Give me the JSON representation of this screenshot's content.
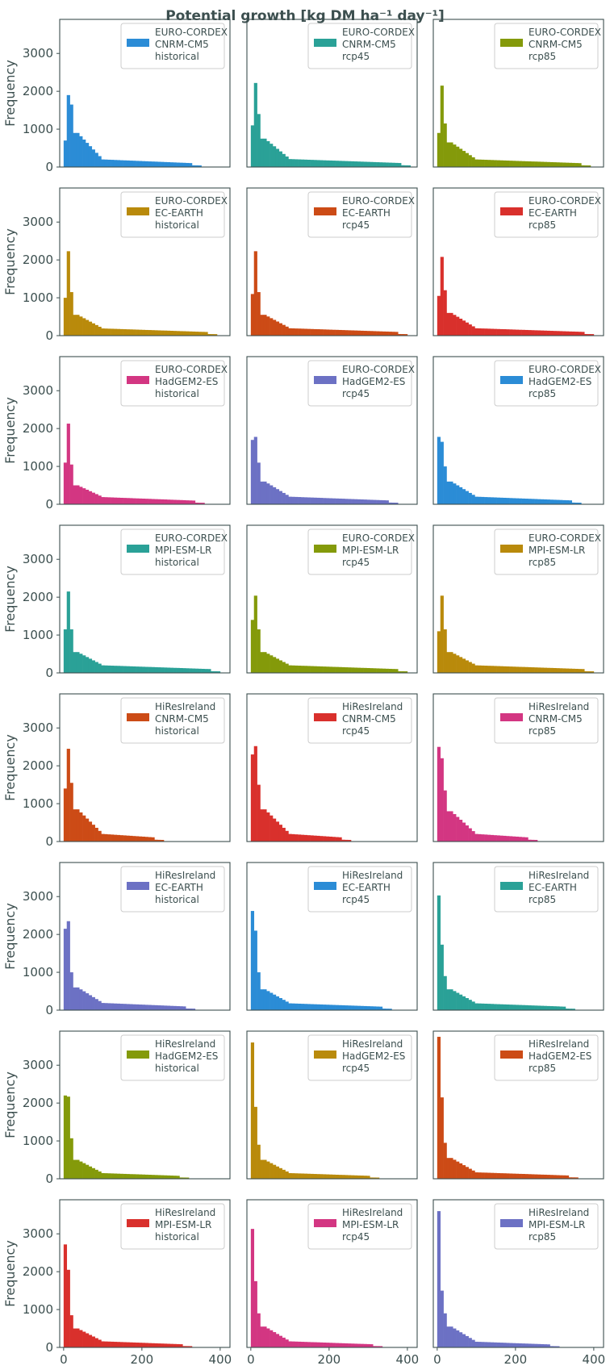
{
  "figure": {
    "title": "Potential growth [kg DM ha⁻¹ day⁻¹]",
    "ylabel": "Frequency",
    "colors": {
      "blue": "#2b8cd6",
      "teal": "#2aa197",
      "olive": "#849a0a",
      "gold": "#b98a0b",
      "orange": "#cc4b16",
      "red": "#d9302c",
      "magenta": "#d33682",
      "violet": "#6c71c4"
    }
  },
  "chart_data": {
    "type": "bar",
    "xlim": [
      -10,
      425
    ],
    "ylim": [
      0,
      3900
    ],
    "xticks": [
      0,
      200,
      400
    ],
    "yticks": [
      0,
      1000,
      2000,
      3000
    ],
    "grid": false,
    "legend_position": "top-right",
    "bin_width": 8,
    "panels": [
      {
        "legend": [
          "EURO-CORDEX",
          "CNRM-CM5",
          "historical"
        ],
        "color": "blue",
        "peak1": 700,
        "peak2": 1900,
        "peak3": 1650,
        "peak4": 900,
        "tail": 200,
        "xmax": 345
      },
      {
        "legend": [
          "EURO-CORDEX",
          "CNRM-CM5",
          "rcp45"
        ],
        "color": "teal",
        "peak1": 1100,
        "peak2": 2220,
        "peak3": 1400,
        "peak4": 750,
        "tail": 210,
        "xmax": 405
      },
      {
        "legend": [
          "EURO-CORDEX",
          "CNRM-CM5",
          "rcp85"
        ],
        "color": "olive",
        "peak1": 900,
        "peak2": 2150,
        "peak3": 1150,
        "peak4": 650,
        "tail": 200,
        "xmax": 385
      },
      {
        "legend": [
          "EURO-CORDEX",
          "EC-EARTH",
          "historical"
        ],
        "color": "gold",
        "peak1": 1000,
        "peak2": 2230,
        "peak3": 1150,
        "peak4": 550,
        "tail": 190,
        "xmax": 390
      },
      {
        "legend": [
          "EURO-CORDEX",
          "EC-EARTH",
          "rcp45"
        ],
        "color": "orange",
        "peak1": 1100,
        "peak2": 2230,
        "peak3": 1150,
        "peak4": 550,
        "tail": 195,
        "xmax": 400
      },
      {
        "legend": [
          "EURO-CORDEX",
          "EC-EARTH",
          "rcp85"
        ],
        "color": "red",
        "peak1": 1050,
        "peak2": 2080,
        "peak3": 1200,
        "peak4": 600,
        "tail": 195,
        "xmax": 400
      },
      {
        "legend": [
          "EURO-CORDEX",
          "HadGEM2-ES",
          "historical"
        ],
        "color": "magenta",
        "peak1": 1100,
        "peak2": 2130,
        "peak3": 1050,
        "peak4": 500,
        "tail": 190,
        "xmax": 355
      },
      {
        "legend": [
          "EURO-CORDEX",
          "HadGEM2-ES",
          "rcp45"
        ],
        "color": "violet",
        "peak1": 1700,
        "peak2": 1780,
        "peak3": 1100,
        "peak4": 600,
        "tail": 200,
        "xmax": 375
      },
      {
        "legend": [
          "EURO-CORDEX",
          "HadGEM2-ES",
          "rcp85"
        ],
        "color": "blue",
        "peak1": 1780,
        "peak2": 1650,
        "peak3": 1000,
        "peak4": 600,
        "tail": 200,
        "xmax": 365
      },
      {
        "legend": [
          "EURO-CORDEX",
          "MPI-ESM-LR",
          "historical"
        ],
        "color": "teal",
        "peak1": 1150,
        "peak2": 2150,
        "peak3": 1150,
        "peak4": 550,
        "tail": 200,
        "xmax": 400
      },
      {
        "legend": [
          "EURO-CORDEX",
          "MPI-ESM-LR",
          "rcp45"
        ],
        "color": "olive",
        "peak1": 1400,
        "peak2": 2040,
        "peak3": 1150,
        "peak4": 550,
        "tail": 200,
        "xmax": 395
      },
      {
        "legend": [
          "EURO-CORDEX",
          "MPI-ESM-LR",
          "rcp85"
        ],
        "color": "gold",
        "peak1": 1100,
        "peak2": 2040,
        "peak3": 1150,
        "peak4": 550,
        "tail": 200,
        "xmax": 400
      },
      {
        "legend": [
          "HiResIreland",
          "CNRM-CM5",
          "historical"
        ],
        "color": "orange",
        "peak1": 1400,
        "peak2": 2450,
        "peak3": 1550,
        "peak4": 850,
        "tail": 200,
        "xmax": 250
      },
      {
        "legend": [
          "HiResIreland",
          "CNRM-CM5",
          "rcp45"
        ],
        "color": "red",
        "peak1": 2300,
        "peak2": 2520,
        "peak3": 1500,
        "peak4": 850,
        "tail": 200,
        "xmax": 255
      },
      {
        "legend": [
          "HiResIreland",
          "CNRM-CM5",
          "rcp85"
        ],
        "color": "magenta",
        "peak1": 2500,
        "peak2": 2200,
        "peak3": 1350,
        "peak4": 800,
        "tail": 200,
        "xmax": 255
      },
      {
        "legend": [
          "HiResIreland",
          "EC-EARTH",
          "historical"
        ],
        "color": "violet",
        "peak1": 2150,
        "peak2": 2350,
        "peak3": 1000,
        "peak4": 600,
        "tail": 190,
        "xmax": 330
      },
      {
        "legend": [
          "HiResIreland",
          "EC-EARTH",
          "rcp45"
        ],
        "color": "blue",
        "peak1": 2620,
        "peak2": 2100,
        "peak3": 1000,
        "peak4": 550,
        "tail": 180,
        "xmax": 360
      },
      {
        "legend": [
          "HiResIreland",
          "EC-EARTH",
          "rcp85"
        ],
        "color": "teal",
        "peak1": 3030,
        "peak2": 1730,
        "peak3": 900,
        "peak4": 550,
        "tail": 180,
        "xmax": 350
      },
      {
        "legend": [
          "HiResIreland",
          "HadGEM2-ES",
          "historical"
        ],
        "color": "olive",
        "peak1": 2200,
        "peak2": 2170,
        "peak3": 1070,
        "peak4": 500,
        "tail": 150,
        "xmax": 320
      },
      {
        "legend": [
          "HiResIreland",
          "HadGEM2-ES",
          "rcp45"
        ],
        "color": "gold",
        "peak1": 3600,
        "peak2": 1900,
        "peak3": 900,
        "peak4": 500,
        "tail": 150,
        "xmax": 325
      },
      {
        "legend": [
          "HiResIreland",
          "HadGEM2-ES",
          "rcp85"
        ],
        "color": "orange",
        "peak1": 3750,
        "peak2": 2150,
        "peak3": 950,
        "peak4": 550,
        "tail": 170,
        "xmax": 355
      },
      {
        "legend": [
          "HiResIreland",
          "MPI-ESM-LR",
          "historical"
        ],
        "color": "red",
        "peak1": 2720,
        "peak2": 2050,
        "peak3": 850,
        "peak4": 500,
        "tail": 160,
        "xmax": 325
      },
      {
        "legend": [
          "HiResIreland",
          "MPI-ESM-LR",
          "rcp45"
        ],
        "color": "magenta",
        "peak1": 3130,
        "peak2": 1750,
        "peak3": 900,
        "peak4": 550,
        "tail": 160,
        "xmax": 330
      },
      {
        "legend": [
          "HiResIreland",
          "MPI-ESM-LR",
          "rcp85"
        ],
        "color": "violet",
        "peak1": 3600,
        "peak2": 1500,
        "peak3": 900,
        "peak4": 550,
        "tail": 150,
        "xmax": 310
      }
    ]
  }
}
